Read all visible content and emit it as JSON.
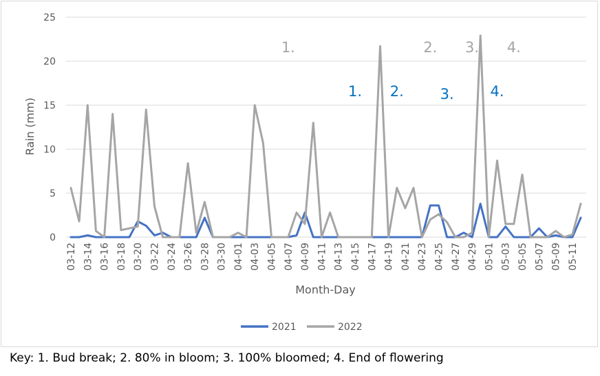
{
  "chart_data": {
    "type": "line",
    "xlabel": "Month-Day",
    "ylabel": "Rain (mm)",
    "ylim": [
      0,
      25
    ],
    "yticks": [
      0,
      5,
      10,
      15,
      20,
      25
    ],
    "grid": true,
    "legend_position": "bottom",
    "x": [
      "03-12",
      "03-13",
      "03-14",
      "03-15",
      "03-16",
      "03-17",
      "03-18",
      "03-19",
      "03-20",
      "03-21",
      "03-22",
      "03-23",
      "03-24",
      "03-25",
      "03-26",
      "03-27",
      "03-28",
      "03-29",
      "03-30",
      "03-31",
      "04-01",
      "04-02",
      "04-03",
      "04-04",
      "04-05",
      "04-06",
      "04-07",
      "04-08",
      "04-09",
      "04-10",
      "04-11",
      "04-12",
      "04-13",
      "04-14",
      "04-15",
      "04-16",
      "04-17",
      "04-18",
      "04-19",
      "04-20",
      "04-21",
      "04-22",
      "04-23",
      "04-24",
      "04-25",
      "04-26",
      "04-27",
      "04-28",
      "04-29",
      "04-30",
      "05-01",
      "05-02",
      "05-03",
      "05-04",
      "05-05",
      "05-06",
      "05-07",
      "05-08",
      "05-09",
      "05-10",
      "05-11",
      "05-12"
    ],
    "xtick_labels": [
      "03-12",
      "03-14",
      "03-16",
      "03-18",
      "03-20",
      "03-22",
      "03-24",
      "03-26",
      "03-28",
      "03-30",
      "04-01",
      "04-03",
      "04-05",
      "04-07",
      "04-09",
      "04-11",
      "04-13",
      "04-15",
      "04-17",
      "04-19",
      "04-21",
      "04-23",
      "04-25",
      "04-27",
      "04-29",
      "05-01",
      "05-03",
      "05-05",
      "05-07",
      "05-09",
      "05-11"
    ],
    "series": [
      {
        "name": "2021",
        "color": "#4472c4",
        "values": [
          0,
          0,
          0.2,
          0,
          0,
          0,
          0,
          0,
          1.8,
          1.3,
          0.2,
          0.5,
          0,
          0,
          0,
          0,
          2.2,
          0,
          0,
          0,
          0,
          0,
          0,
          0,
          0,
          0,
          0,
          0.2,
          2.8,
          0,
          0,
          0,
          0,
          0,
          0,
          0,
          0,
          0,
          0,
          0,
          0,
          0,
          0,
          3.6,
          3.6,
          0,
          0,
          0.5,
          0,
          3.8,
          0,
          0,
          1.2,
          0,
          0,
          0,
          1,
          0,
          0.2,
          0,
          0,
          2.2
        ]
      },
      {
        "name": "2022",
        "color": "#a5a5a5",
        "values": [
          5.6,
          1.8,
          15,
          0.7,
          0,
          14,
          0.8,
          1,
          1.2,
          14.5,
          3.5,
          0,
          0,
          0,
          8.4,
          0.5,
          4,
          0,
          0,
          0,
          0.5,
          0,
          15,
          10.7,
          0,
          0,
          0,
          2.8,
          1.5,
          13,
          0,
          2.8,
          0,
          0,
          0,
          0,
          0,
          21.7,
          0,
          5.6,
          3.3,
          5.6,
          0,
          2,
          2.6,
          1.7,
          0,
          0,
          0.5,
          22.9,
          0,
          8.7,
          1.5,
          1.5,
          7.1,
          0,
          0,
          0,
          0.7,
          0,
          0.3,
          3.8
        ]
      }
    ],
    "annotations": [
      {
        "text": "1.",
        "x": "04-07",
        "y": 21,
        "color": "#a5a5a5"
      },
      {
        "text": "2.",
        "x": "04-24",
        "y": 21,
        "color": "#a5a5a5"
      },
      {
        "text": "3.",
        "x": "04-29",
        "y": 21,
        "color": "#a5a5a5"
      },
      {
        "text": "4.",
        "x": "05-04",
        "y": 21,
        "color": "#a5a5a5"
      },
      {
        "text": "1.",
        "x": "04-15",
        "y": 16,
        "color": "#0070c0"
      },
      {
        "text": "2.",
        "x": "04-20",
        "y": 16,
        "color": "#0070c0"
      },
      {
        "text": "3.",
        "x": "04-26",
        "y": 15.7,
        "color": "#0070c0"
      },
      {
        "text": "4.",
        "x": "05-02",
        "y": 16,
        "color": "#0070c0"
      }
    ]
  },
  "key_text": "Key: 1. Bud break; 2. 80% in bloom; 3. 100% bloomed; 4. End of flowering"
}
